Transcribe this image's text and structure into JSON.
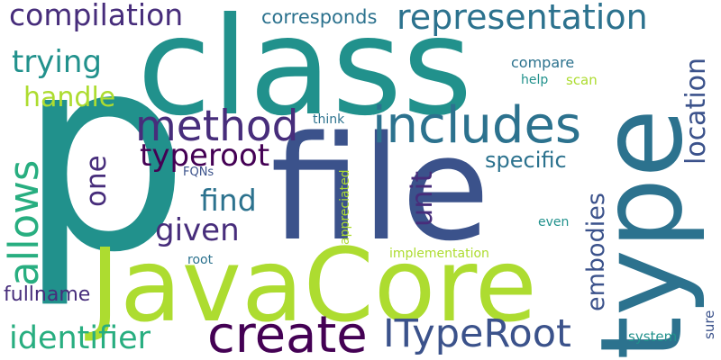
{
  "words": {
    "p": "p",
    "class": "class",
    "file": "file",
    "type": "type",
    "javacore": "JavaCore",
    "create": "create",
    "includes": "includes",
    "method": "method",
    "representation": "representation",
    "compilation": "compilation",
    "allows": "allows",
    "itypeRoot": "ITypeRoot",
    "identifier": "identifier",
    "trying": "trying",
    "handle": "handle",
    "typeroot": "typeroot",
    "find": "find",
    "given": "given",
    "one": "one",
    "unit": "unit",
    "location": "location",
    "embodies": "embodies",
    "specific": "specific",
    "corresponds": "corresponds",
    "fullname": "fullname",
    "compare": "compare",
    "help": "help",
    "scan": "scan",
    "think": "think",
    "fqns": "FQNs",
    "appreciated": "appreciated",
    "root": "root",
    "implementation": "implementation",
    "even": "even",
    "system": "system",
    "sure": "sure"
  },
  "palette": {
    "dark_purple": "#440154",
    "indigo": "#472d7b",
    "blue": "#3b528b",
    "steel_blue": "#2c728e",
    "teal": "#21918c",
    "green_teal": "#28ae80",
    "green": "#5ec962",
    "lime": "#addc30"
  }
}
